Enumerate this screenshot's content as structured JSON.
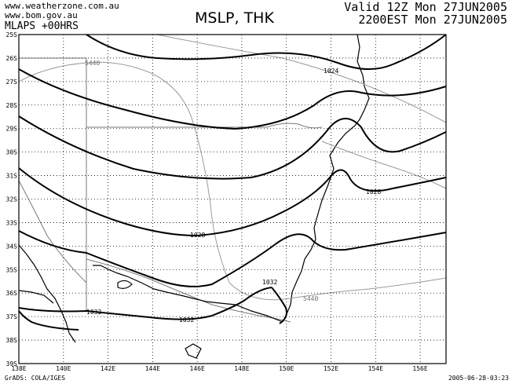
{
  "header": {
    "source_line1": "www.weatherzone.com.au",
    "source_line2": "www.bom.gov.au",
    "model": "MLAPS +00HRS",
    "title": "MSLP, THK",
    "valid_line1": "Valid 12Z Mon 27JUN2005",
    "valid_line2": "2200EST Mon 27JUN2005"
  },
  "footer": {
    "credit": "GrADS: COLA/IGES",
    "timestamp": "2005-06-28-03:23"
  },
  "map": {
    "lon_ticks": [
      "138E",
      "140E",
      "142E",
      "144E",
      "146E",
      "148E",
      "150E",
      "152E",
      "154E",
      "156E"
    ],
    "lat_ticks": [
      "25S",
      "26S",
      "27S",
      "28S",
      "29S",
      "30S",
      "31S",
      "32S",
      "33S",
      "34S",
      "35S",
      "36S",
      "37S",
      "38S",
      "39S"
    ],
    "isobar_labels": [
      "1024",
      "1028",
      "1028",
      "1032",
      "1032"
    ],
    "thickness_labels": [
      "5440",
      "5440"
    ],
    "colors": {
      "isobar": "#000000",
      "thickness": "#9a9a9a",
      "coast": "#000000",
      "border": "#7a7a7a",
      "grid": "#000000"
    }
  }
}
